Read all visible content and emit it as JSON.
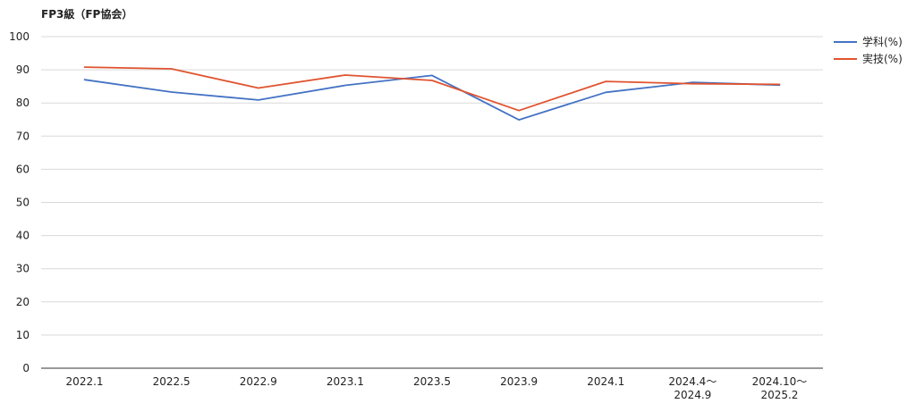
{
  "chart_data": {
    "type": "line",
    "title": "FP3級（FP協会）",
    "xlabel": "",
    "ylabel": "",
    "ylim": [
      0,
      100
    ],
    "yticks": [
      0,
      10,
      20,
      30,
      40,
      50,
      60,
      70,
      80,
      90,
      100
    ],
    "grid": true,
    "legend_position": "right",
    "categories": [
      [
        "2022.1"
      ],
      [
        "2022.5"
      ],
      [
        "2022.9"
      ],
      [
        "2023.1"
      ],
      [
        "2023.5"
      ],
      [
        "2023.9"
      ],
      [
        "2024.1"
      ],
      [
        "2024.4〜",
        "2024.9"
      ],
      [
        "2024.10〜",
        "2025.2"
      ]
    ],
    "series": [
      {
        "name": "学科(%)",
        "color": "#4472c4",
        "values": [
          87.0,
          83.3,
          80.9,
          85.3,
          88.3,
          74.9,
          83.2,
          86.2,
          85.4
        ]
      },
      {
        "name": "実技(%)",
        "color": "#e0532f",
        "values": [
          90.8,
          90.3,
          84.5,
          88.4,
          86.8,
          77.7,
          86.5,
          85.8,
          85.6
        ]
      }
    ]
  }
}
